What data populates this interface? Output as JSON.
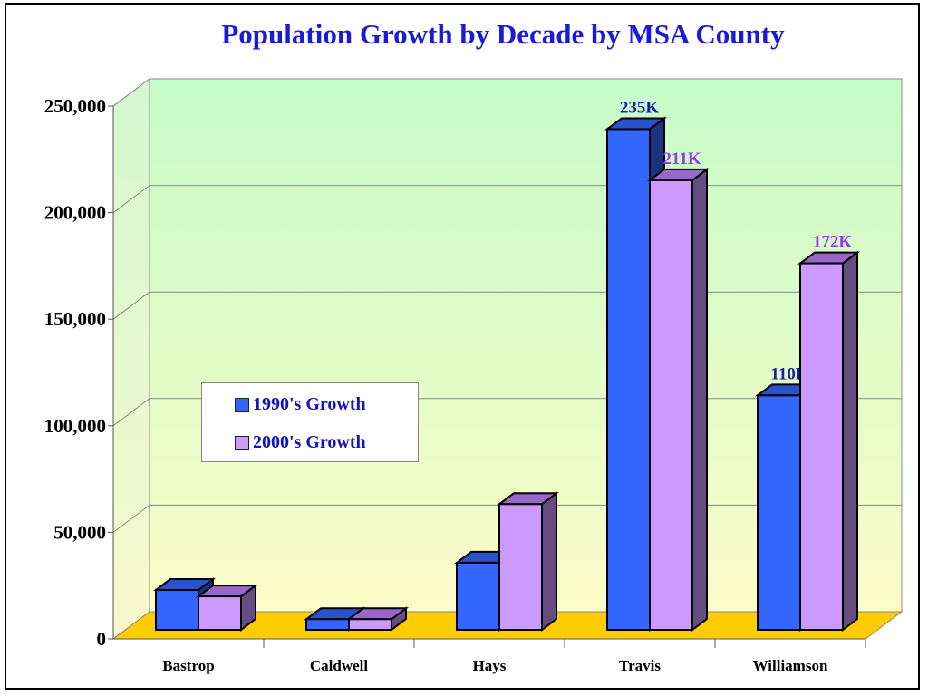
{
  "chart_data": {
    "type": "bar",
    "title": "Population Growth by Decade by MSA County",
    "categories": [
      "Bastrop",
      "Caldwell",
      "Hays",
      "Travis",
      "Williamson"
    ],
    "series": [
      {
        "name": "1990's Growth",
        "values": [
          18700,
          5000,
          31500,
          235000,
          110000
        ],
        "color": "#3366ff",
        "labels": [
          "",
          "",
          "",
          "235K",
          "110K"
        ],
        "label_color": "#1a1aa8"
      },
      {
        "name": "2000's Growth",
        "values": [
          15700,
          5000,
          59000,
          211000,
          172000
        ],
        "color": "#cc99ff",
        "labels": [
          "",
          "",
          "",
          "211K",
          "172K"
        ],
        "label_color": "#9933ff"
      }
    ],
    "ylim": [
      0,
      250000
    ],
    "yticks": [
      0,
      50000,
      100000,
      150000,
      200000,
      250000
    ],
    "ytick_labels": [
      "0",
      "50,000",
      "100,000",
      "150,000",
      "200,000",
      "250,000"
    ],
    "xlabel": "",
    "ylabel": "",
    "grid": true,
    "legend": "center-left"
  }
}
